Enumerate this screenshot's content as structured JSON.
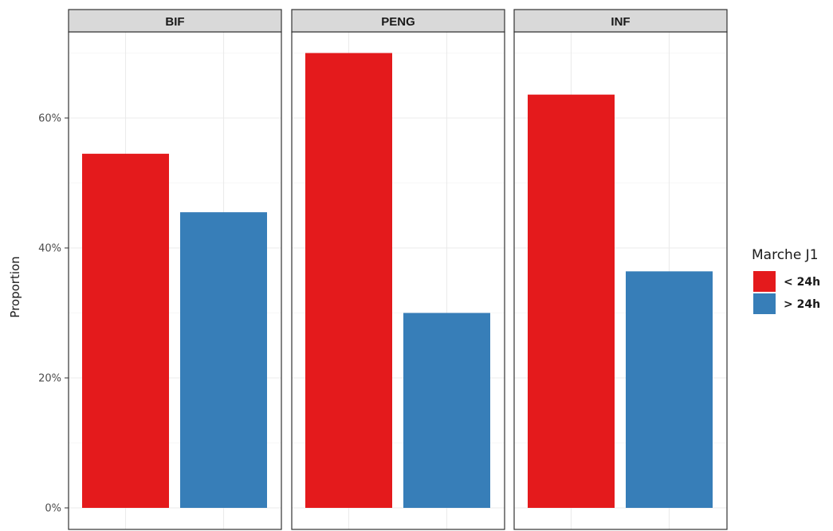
{
  "chart_data": {
    "type": "bar",
    "facets": [
      "BIF",
      "PENG",
      "INF"
    ],
    "categories": [
      "< 24h",
      "> 24h"
    ],
    "series": [
      {
        "facet": "BIF",
        "values": [
          54.5,
          45.5
        ]
      },
      {
        "facet": "PENG",
        "values": [
          70.0,
          30.0
        ]
      },
      {
        "facet": "INF",
        "values": [
          63.6,
          36.4
        ]
      }
    ],
    "colors": {
      "< 24h": "#e41a1c",
      "> 24h": "#377eb8"
    },
    "ylabel": "Proportion",
    "xlabel": "",
    "ylim": [
      0,
      72
    ],
    "y_ticks": [
      0,
      20,
      40,
      60
    ],
    "y_tick_labels": [
      "0%",
      "20%",
      "40%",
      "60%"
    ],
    "grid": true,
    "legend": {
      "title": "Marche J1",
      "position": "right",
      "entries": [
        "< 24h",
        "> 24h"
      ]
    }
  }
}
